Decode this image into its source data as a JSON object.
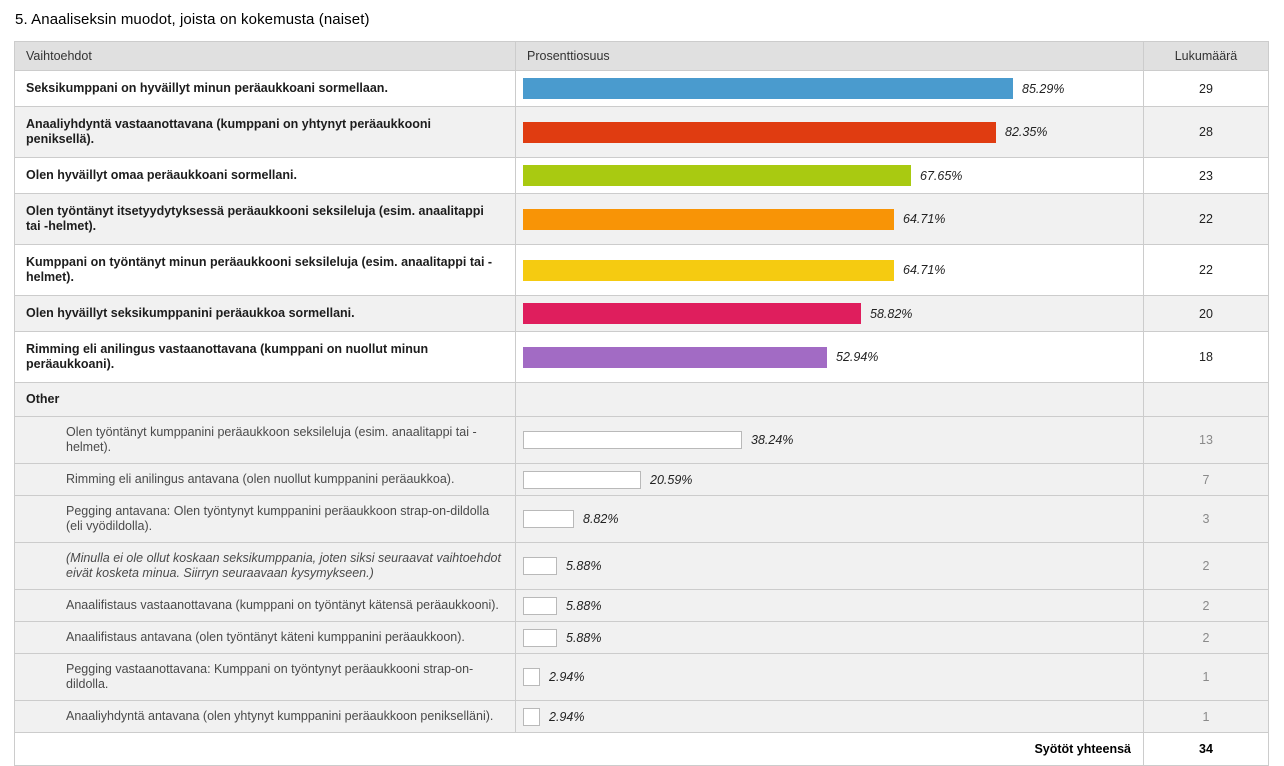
{
  "title": "5. Anaaliseksin muodot, joista on kokemusta (naiset)",
  "colors": {
    "header_bg": "#e0e0e0",
    "row_alt_bg": "#f1f1f1",
    "border": "#cccccc",
    "bar_blue": "#4A9BCE",
    "bar_red": "#E03C11",
    "bar_green": "#A9CA11",
    "bar_orange": "#F89406",
    "bar_yellow": "#F5CB11",
    "bar_pink": "#DF1E5D",
    "bar_purple": "#A26BC4",
    "bar_empty_fill": "#ffffff",
    "bar_empty_border": "#b9b9b9"
  },
  "table": {
    "columns": [
      "Vaihtoehdot",
      "Prosenttiosuus",
      "Lukumäärä"
    ],
    "footer_label": "Syötöt yhteensä",
    "footer_total": "34",
    "rows": [
      {
        "kind": "main",
        "label": "Seksikumppani on hyväillyt minun peräaukkoani sormellaan.",
        "pct": 85.29,
        "pct_label": "85.29%",
        "count": "29",
        "color": "#4A9BCE"
      },
      {
        "kind": "main",
        "label": "Anaaliyhdyntä vastaanottavana (kumppani on yhtynyt peräaukkooni peniksellä).",
        "pct": 82.35,
        "pct_label": "82.35%",
        "count": "28",
        "color": "#E03C11"
      },
      {
        "kind": "main",
        "label": "Olen hyväillyt omaa peräaukkoani sormellani.",
        "pct": 67.65,
        "pct_label": "67.65%",
        "count": "23",
        "color": "#A9CA11"
      },
      {
        "kind": "main",
        "label": "Olen työntänyt itsetyydytyksessä peräaukkooni seksileluja (esim. anaalitappi tai -helmet).",
        "pct": 64.71,
        "pct_label": "64.71%",
        "count": "22",
        "color": "#F89406"
      },
      {
        "kind": "main",
        "label": "Kumppani on työntänyt minun peräaukkooni seksileluja (esim. anaalitappi tai -helmet).",
        "pct": 64.71,
        "pct_label": "64.71%",
        "count": "22",
        "color": "#F5CB11"
      },
      {
        "kind": "main",
        "label": "Olen hyväillyt seksikumppanini peräaukkoa sormellani.",
        "pct": 58.82,
        "pct_label": "58.82%",
        "count": "20",
        "color": "#DF1E5D"
      },
      {
        "kind": "main",
        "label": "Rimming eli anilingus vastaanottavana (kumppani on nuollut minun peräaukkoani).",
        "pct": 52.94,
        "pct_label": "52.94%",
        "count": "18",
        "color": "#A26BC4"
      },
      {
        "kind": "section",
        "label": "Other"
      },
      {
        "kind": "sub",
        "label": "Olen työntänyt kumppanini peräaukkoon seksileluja (esim. anaalitappi tai -helmet).",
        "pct": 38.24,
        "pct_label": "38.24%",
        "count": "13"
      },
      {
        "kind": "sub",
        "label": "Rimming eli anilingus antavana (olen nuollut kumppanini peräaukkoa).",
        "pct": 20.59,
        "pct_label": "20.59%",
        "count": "7"
      },
      {
        "kind": "sub",
        "label": "Pegging antavana: Olen työntynyt kumppanini peräaukkoon strap-on-dildolla (eli vyödildolla).",
        "pct": 8.82,
        "pct_label": "8.82%",
        "count": "3"
      },
      {
        "kind": "sub",
        "italic": true,
        "label": "(Minulla ei ole ollut koskaan seksikumppania, joten siksi seuraavat vaihtoehdot eivät kosketa minua. Siirryn seuraavaan kysymykseen.)",
        "pct": 5.88,
        "pct_label": "5.88%",
        "count": "2"
      },
      {
        "kind": "sub",
        "label": "Anaalifistaus vastaanottavana (kumppani on työntänyt kätensä peräaukkooni).",
        "pct": 5.88,
        "pct_label": "5.88%",
        "count": "2"
      },
      {
        "kind": "sub",
        "label": "Anaalifistaus antavana (olen työntänyt käteni kumppanini peräaukkoon).",
        "pct": 5.88,
        "pct_label": "5.88%",
        "count": "2"
      },
      {
        "kind": "sub",
        "label": "Pegging vastaanottavana: Kumppani on työntynyt peräaukkooni strap-on-dildolla.",
        "pct": 2.94,
        "pct_label": "2.94%",
        "count": "1"
      },
      {
        "kind": "sub",
        "label": "Anaaliyhdyntä antavana (olen yhtynyt kumppanini peräaukkoon penikselläni).",
        "pct": 2.94,
        "pct_label": "2.94%",
        "count": "1"
      }
    ]
  },
  "chart_data": {
    "type": "bar",
    "orientation": "horizontal",
    "title": "5. Anaaliseksin muodot, joista on kokemusta (naiset)",
    "value_label": "Prosenttiosuus",
    "count_label": "Lukumäärä",
    "category_label": "Vaihtoehdot",
    "xlim": [
      0,
      100
    ],
    "grid": false,
    "legend": false,
    "total_entries": 34,
    "categories": [
      "Seksikumppani on hyväillyt minun peräaukkoani sormellaan.",
      "Anaaliyhdyntä vastaanottavana (kumppani on yhtynyt peräaukkooni peniksellä).",
      "Olen hyväillyt omaa peräaukkoani sormellani.",
      "Olen työntänyt itsetyydytyksessä peräaukkooni seksileluja (esim. anaalitappi tai -helmet).",
      "Kumppani on työntänyt minun peräaukkooni seksileluja (esim. anaalitappi tai -helmet).",
      "Olen hyväillyt seksikumppanini peräaukkoa sormellani.",
      "Rimming eli anilingus vastaanottavana (kumppani on nuollut minun peräaukkoani).",
      "Olen työntänyt kumppanini peräaukkoon seksileluja (esim. anaalitappi tai -helmet).",
      "Rimming eli anilingus antavana (olen nuollut kumppanini peräaukkoa).",
      "Pegging antavana: Olen työntynyt kumppanini peräaukkoon strap-on-dildolla (eli vyödildolla).",
      "(Minulla ei ole ollut koskaan seksikumppania, joten siksi seuraavat vaihtoehdot eivät kosketa minua. Siirryn seuraavaan kysymykseen.)",
      "Anaalifistaus vastaanottavana (kumppani on työntänyt kätensä peräaukkooni).",
      "Anaalifistaus antavana (olen työntänyt käteni kumppanini peräaukkoon).",
      "Pegging vastaanottavana: Kumppani on työntynyt peräaukkooni strap-on-dildolla.",
      "Anaaliyhdyntä antavana (olen yhtynyt kumppanini peräaukkoon penikselläni)."
    ],
    "values": [
      85.29,
      82.35,
      67.65,
      64.71,
      64.71,
      58.82,
      52.94,
      38.24,
      20.59,
      8.82,
      5.88,
      5.88,
      5.88,
      2.94,
      2.94
    ],
    "counts": [
      29,
      28,
      23,
      22,
      22,
      20,
      18,
      13,
      7,
      3,
      2,
      2,
      2,
      1,
      1
    ]
  }
}
